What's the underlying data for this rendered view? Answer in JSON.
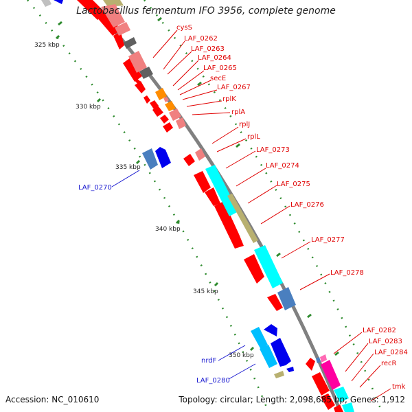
{
  "title": "Lactobacillus fermentum IFO 3956, complete genome",
  "footer": {
    "accession": "Accession: NC_010610",
    "topology": "Topology: circular; Length: 2,098,685 bp; Genes: 1,912"
  },
  "colors": {
    "backbone": "#808080",
    "tick": "#2e8b2e",
    "forward_label": "#1a1ad0",
    "reverse_label": "#e00000"
  },
  "ticks": [
    {
      "label": "325 kbp"
    },
    {
      "label": "330 kbp"
    },
    {
      "label": "335 kbp"
    },
    {
      "label": "340 kbp"
    },
    {
      "label": "345 kbp"
    },
    {
      "label": "350 kbp"
    }
  ],
  "reverse_labels": [
    "cysS",
    "LAF_0262",
    "LAF_0263",
    "LAF_0264",
    "LAF_0265",
    "secE",
    "LAF_0267",
    "rplK",
    "rplA",
    "rplJ",
    "rplL",
    "LAF_0273",
    "LAF_0274",
    "LAF_0275",
    "LAF_0276",
    "LAF_0277",
    "LAF_0278",
    "LAF_0282",
    "LAF_0283",
    "LAF_0284",
    "recR",
    "tmk"
  ],
  "forward_labels": [
    "LAF_0270",
    "nrdF",
    "LAF_0280"
  ]
}
